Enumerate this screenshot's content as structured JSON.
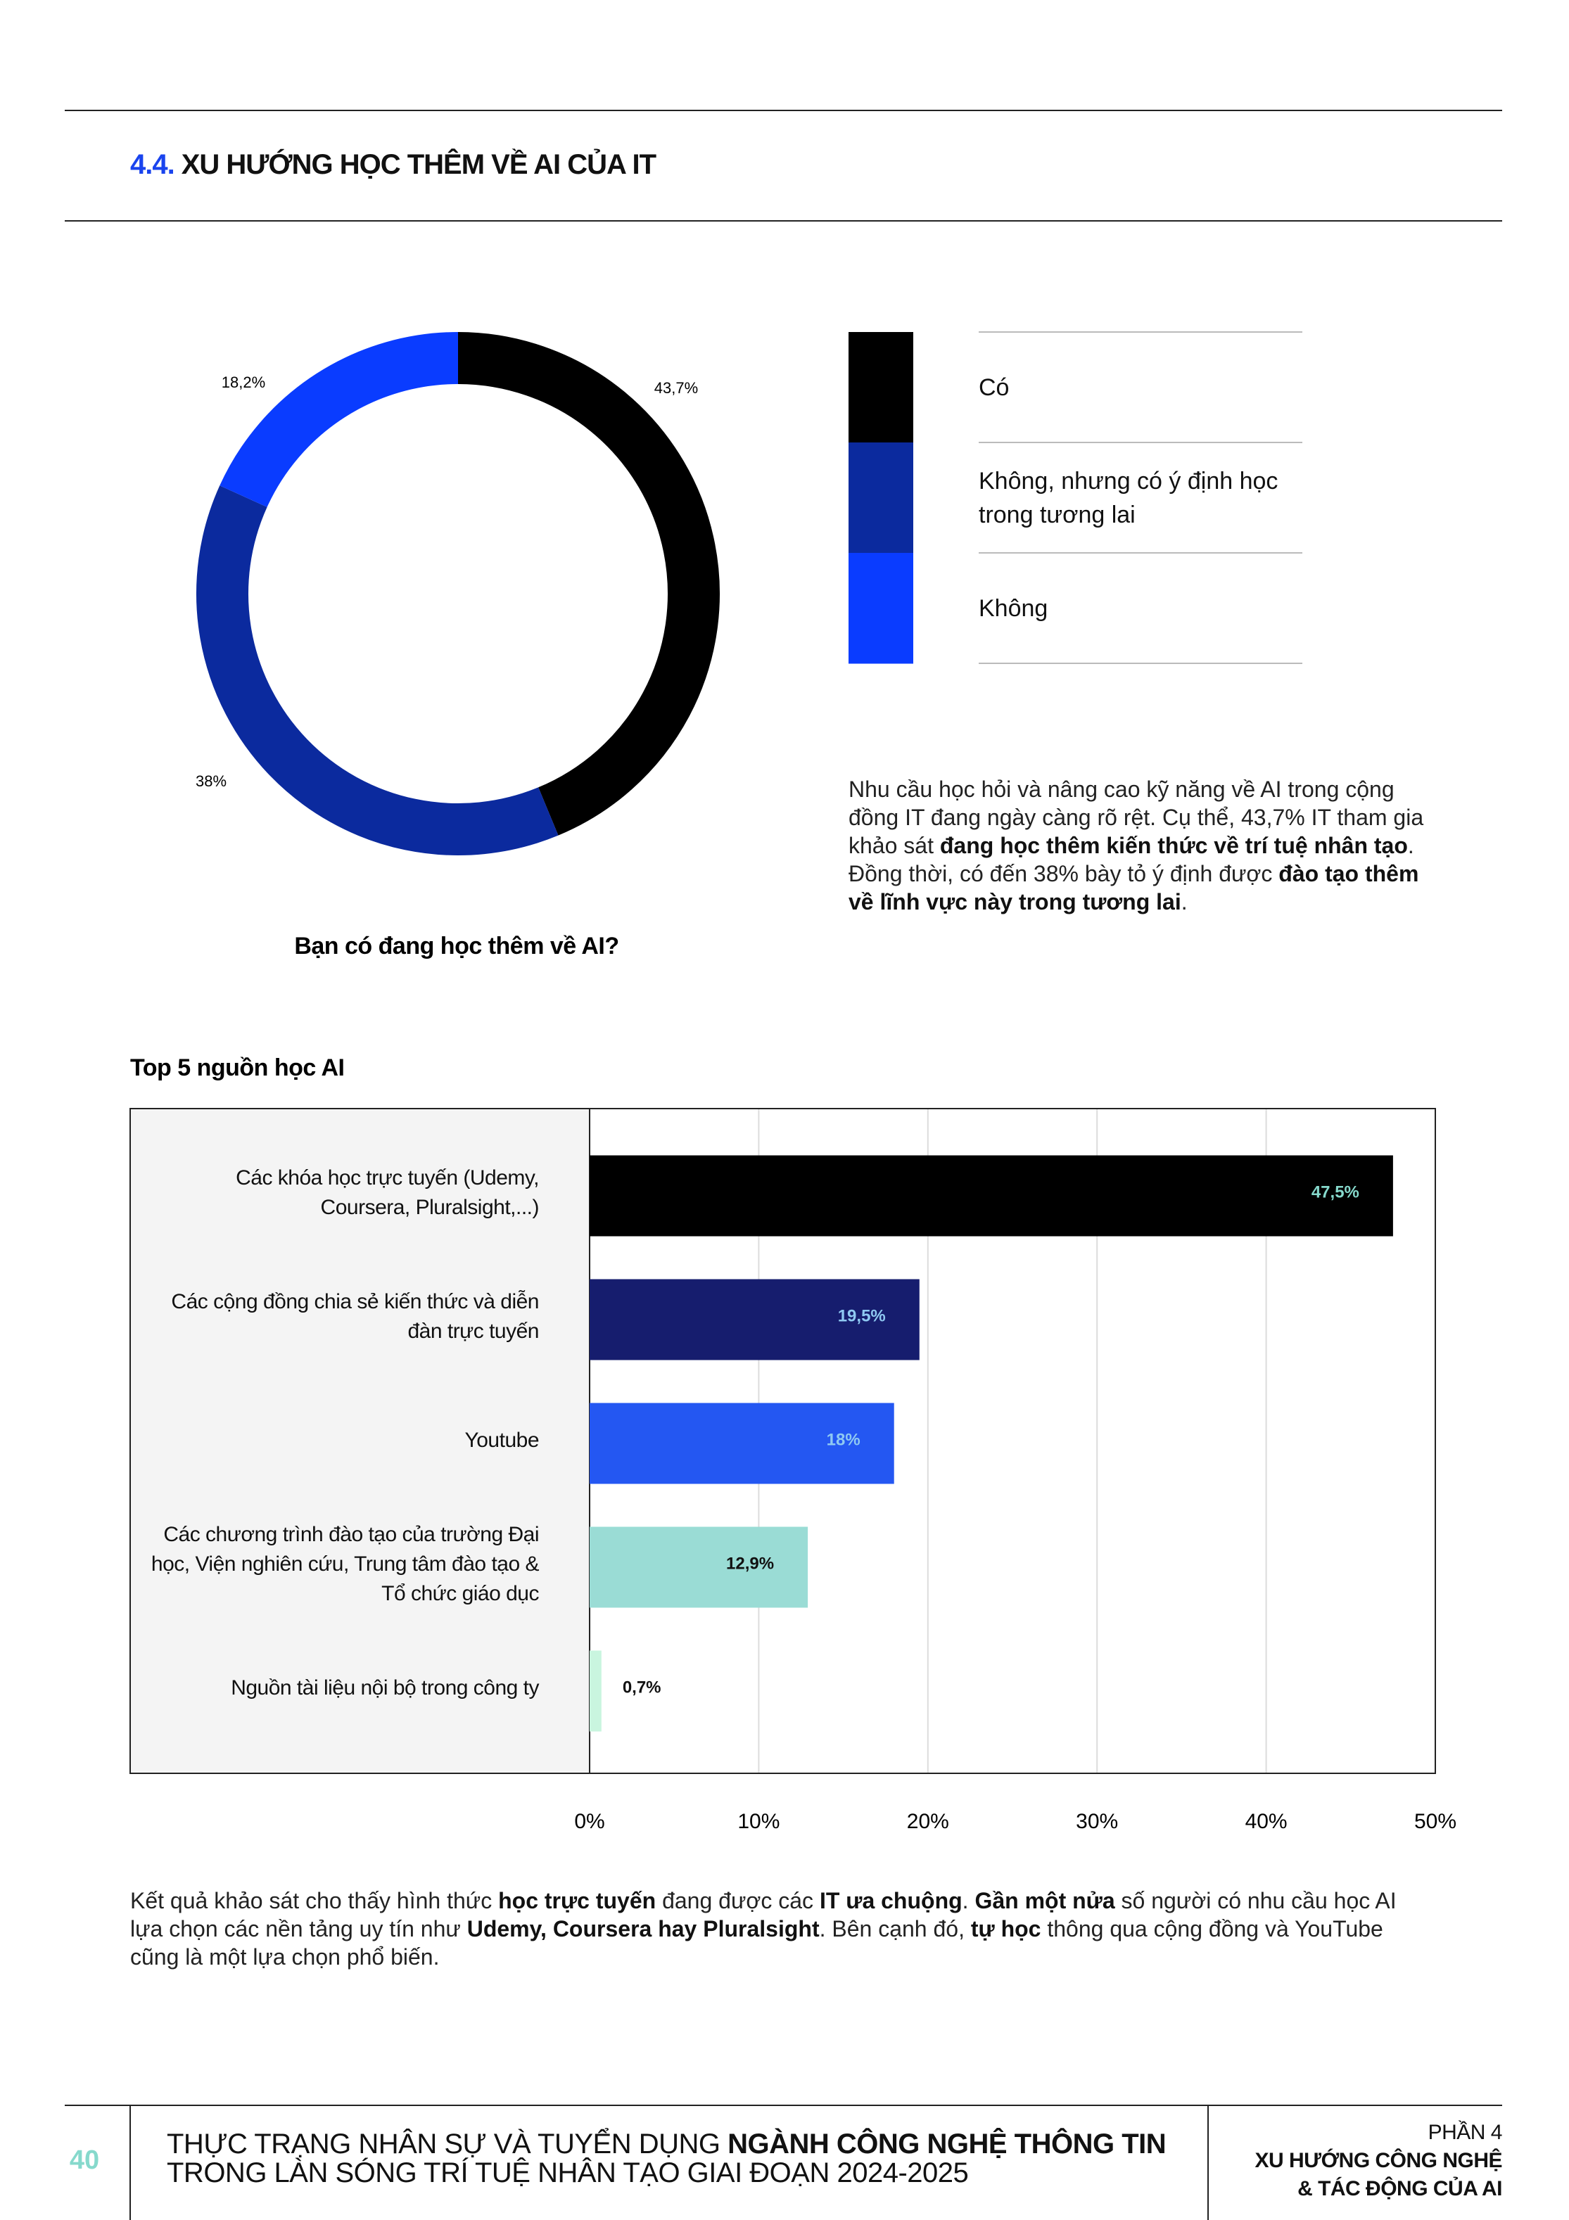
{
  "header": {
    "section_number": "4.4.",
    "section_title": "XU HƯỚNG HỌC THÊM VỀ AI CỦA IT"
  },
  "chart_data": [
    {
      "type": "donut",
      "title": "Bạn có đang học thêm về AI?",
      "categories": [
        "Có",
        "Không, nhưng có ý định học trong tương lai",
        "Không"
      ],
      "values": [
        43.7,
        38,
        18.2
      ],
      "value_labels": [
        "43,7%",
        "38%",
        "18,2%"
      ],
      "colors": [
        "#000000",
        "#0b2a9e",
        "#0a3cff"
      ],
      "legend": "right"
    },
    {
      "type": "hbar",
      "title": "Top 5 nguồn học AI",
      "categories": [
        "Các khóa học trực tuyến (Udemy, Coursera, Pluralsight,...)",
        "Các cộng đồng chia sẻ kiến thức và diễn đàn trực tuyến",
        "Youtube",
        "Các chương trình đào tạo của trường Đại học, Viện nghiên cứu, Trung tâm đào tạo & Tổ chức giáo dục",
        "Nguồn tài liệu nội bộ trong công ty"
      ],
      "values": [
        47.5,
        19.5,
        18,
        12.9,
        0.7
      ],
      "value_labels": [
        "47,5%",
        "19,5%",
        "18%",
        "12,9%",
        "0,7%"
      ],
      "colors": [
        "#000000",
        "#161d6e",
        "#2457f2",
        "#9adcd5",
        "#c9f5df"
      ],
      "label_colors": [
        "#86d9cc",
        "#8fc9f2",
        "#8fc9f2",
        "#111111",
        "#111111"
      ],
      "xlim": [
        0,
        50
      ],
      "xticks": [
        {
          "value": 0,
          "label": "0%"
        },
        {
          "value": 10,
          "label": "10%"
        },
        {
          "value": 20,
          "label": "20%"
        },
        {
          "value": 30,
          "label": "30%"
        },
        {
          "value": 40,
          "label": "40%"
        },
        {
          "value": 50,
          "label": "50%"
        }
      ],
      "grid": true
    }
  ],
  "paragraphs": [
    [
      {
        "text": "Nhu cầu học hỏi và nâng cao kỹ năng về AI trong cộng đồng IT đang ngày càng rõ rệt. Cụ thể, 43,7% IT tham gia khảo sát ",
        "bold": false
      },
      {
        "text": "đang học thêm kiến thức về trí tuệ nhân tạo",
        "bold": true
      },
      {
        "text": ". Đồng thời, có đến 38% bày tỏ ý định được ",
        "bold": false
      },
      {
        "text": "đào tạo thêm về lĩnh vực này trong tương lai",
        "bold": true
      },
      {
        "text": ".",
        "bold": false
      }
    ],
    [
      {
        "text": "Kết quả khảo sát cho thấy hình thức ",
        "bold": false
      },
      {
        "text": "học trực tuyến",
        "bold": true
      },
      {
        "text": " đang được các ",
        "bold": false
      },
      {
        "text": "IT ưa chuộng",
        "bold": true
      },
      {
        "text": ". ",
        "bold": false
      },
      {
        "text": "Gần một nửa",
        "bold": true
      },
      {
        "text": " số người có nhu cầu học AI lựa chọn các nền tảng uy tín như ",
        "bold": false
      },
      {
        "text": "Udemy, Coursera hay Pluralsight",
        "bold": true
      },
      {
        "text": ". Bên cạnh đó, ",
        "bold": false
      },
      {
        "text": "tự học",
        "bold": true
      },
      {
        "text": " thông qua cộng đồng và YouTube cũng là một lựa chọn phổ biến.",
        "bold": false
      }
    ]
  ],
  "footer": {
    "page_number": "40",
    "title_lines": [
      [
        {
          "text": "THỰC TRẠNG NHÂN SỰ VÀ TUYỂN DỤNG ",
          "bold": false
        },
        {
          "text": "NGÀNH CÔNG NGHỆ THÔNG TIN",
          "bold": true
        }
      ],
      [
        {
          "text": "TRONG LÀN SÓNG TRÍ TUỆ NHÂN TẠO GIAI ĐOẠN 2024-2025",
          "bold": false
        }
      ]
    ],
    "part": "PHẦN 4",
    "part_title_lines": [
      "XU HƯỚNG CÔNG NGHỆ",
      "& TÁC ĐỘNG CỦA AI"
    ]
  }
}
